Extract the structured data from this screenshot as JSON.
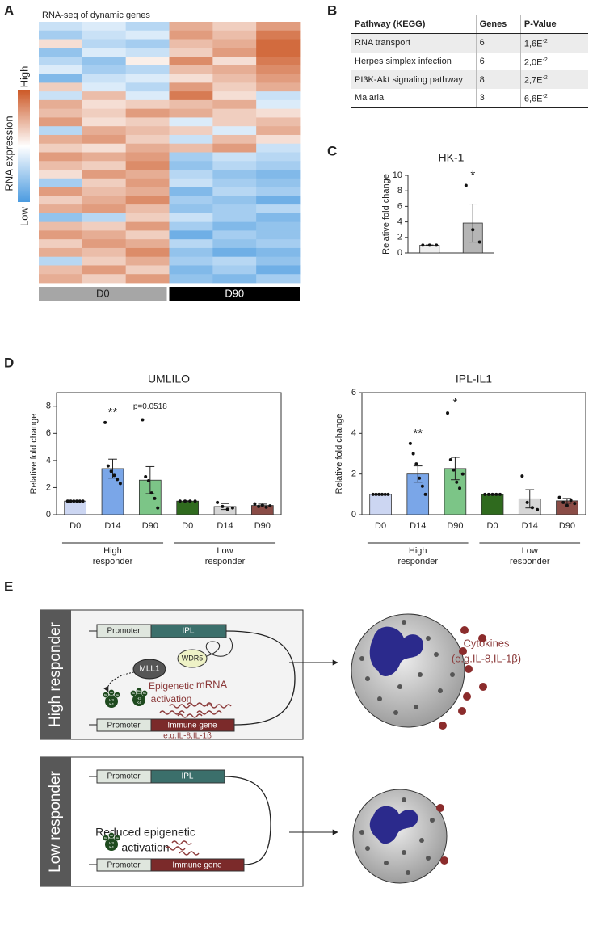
{
  "panel_labels": [
    "A",
    "B",
    "C",
    "D",
    "E"
  ],
  "chart_data": [
    {
      "type": "heatmap",
      "title": "RNA-seq of dynamic genes",
      "zlim": [
        -1,
        1
      ],
      "colorbar": {
        "label": "RNA expression",
        "high": "High",
        "low": "Low",
        "colors": [
          "#4b9be0",
          "#ffffff",
          "#cd5a28"
        ]
      },
      "groups": [
        {
          "name": "D0",
          "columns": 3,
          "color": "#a6a6a6",
          "text_color": "#222222"
        },
        {
          "name": "D90",
          "columns": 3,
          "color": "#000000",
          "text_color": "#ffffff"
        }
      ],
      "values": [
        [
          -0.3,
          -0.2,
          -0.4,
          0.5,
          0.3,
          0.6
        ],
        [
          -0.5,
          -0.3,
          -0.2,
          0.6,
          0.4,
          0.8
        ],
        [
          0.2,
          -0.4,
          -0.5,
          0.4,
          0.5,
          0.9
        ],
        [
          -0.6,
          -0.2,
          -0.3,
          0.3,
          0.6,
          0.9
        ],
        [
          -0.4,
          -0.6,
          0.1,
          0.7,
          0.2,
          0.8
        ],
        [
          -0.2,
          -0.5,
          -0.4,
          0.4,
          0.5,
          0.7
        ],
        [
          -0.7,
          -0.3,
          -0.2,
          0.2,
          0.4,
          0.6
        ],
        [
          0.3,
          -0.2,
          -0.4,
          0.6,
          0.3,
          0.5
        ],
        [
          -0.3,
          0.4,
          -0.2,
          0.8,
          0.2,
          -0.3
        ],
        [
          0.5,
          0.2,
          0.3,
          0.4,
          0.5,
          -0.2
        ],
        [
          0.4,
          0.3,
          0.6,
          0.5,
          0.3,
          0.2
        ],
        [
          0.6,
          0.2,
          0.3,
          -0.2,
          0.3,
          0.4
        ],
        [
          -0.4,
          0.5,
          0.4,
          0.3,
          -0.2,
          0.5
        ],
        [
          0.5,
          0.6,
          0.3,
          -0.3,
          0.4,
          0.2
        ],
        [
          0.3,
          0.2,
          0.5,
          0.4,
          0.6,
          -0.3
        ],
        [
          0.6,
          0.5,
          0.6,
          -0.5,
          -0.3,
          -0.4
        ],
        [
          0.4,
          0.3,
          0.7,
          -0.6,
          -0.4,
          -0.5
        ],
        [
          0.2,
          0.6,
          0.5,
          -0.4,
          -0.6,
          -0.7
        ],
        [
          -0.5,
          0.3,
          0.6,
          -0.3,
          -0.5,
          -0.6
        ],
        [
          0.6,
          0.4,
          0.5,
          -0.7,
          -0.4,
          -0.5
        ],
        [
          0.3,
          0.5,
          0.7,
          -0.5,
          -0.6,
          -0.8
        ],
        [
          0.5,
          0.6,
          0.4,
          -0.6,
          -0.5,
          -0.4
        ],
        [
          -0.6,
          -0.4,
          0.3,
          -0.3,
          -0.5,
          -0.7
        ],
        [
          0.4,
          0.3,
          0.6,
          -0.5,
          -0.7,
          -0.6
        ],
        [
          0.6,
          0.5,
          0.3,
          -0.8,
          -0.5,
          -0.6
        ],
        [
          0.3,
          0.6,
          0.5,
          -0.4,
          -0.6,
          -0.5
        ],
        [
          0.5,
          0.4,
          0.7,
          -0.6,
          -0.8,
          -0.7
        ],
        [
          -0.4,
          0.3,
          0.5,
          -0.5,
          -0.4,
          -0.6
        ],
        [
          0.4,
          0.6,
          0.3,
          -0.7,
          -0.5,
          -0.8
        ],
        [
          0.5,
          0.3,
          0.6,
          -0.6,
          -0.7,
          -0.5
        ]
      ]
    },
    {
      "type": "bar",
      "title": "HK-1",
      "ylabel": "Relative fold change",
      "categories": [
        null,
        null
      ],
      "values": [
        1,
        3.85
      ],
      "errors": [
        0.03,
        2.45
      ],
      "points": [
        [
          1,
          1,
          1
        ],
        [
          8.7,
          3.0,
          1.4
        ]
      ],
      "colors": [
        "#eeeeee",
        "#b5b5b5"
      ],
      "ylim": [
        0,
        10
      ],
      "yticks": [
        0,
        2,
        4,
        6,
        8,
        10
      ],
      "annotations": [
        null,
        "*"
      ],
      "frame": false
    },
    {
      "type": "bar",
      "title": "UMLILO",
      "ylabel": "Relative fold change",
      "categories": [
        "D0",
        "D14",
        "D90",
        "D0",
        "D14",
        "D90"
      ],
      "values": [
        1,
        3.4,
        2.55,
        1,
        0.6,
        0.68
      ],
      "errors": [
        0.02,
        0.7,
        1.0,
        0.02,
        0.22,
        0.1
      ],
      "points": [
        [
          1,
          1,
          1,
          1,
          1,
          1
        ],
        [
          6.8,
          3.6,
          3.2,
          2.9,
          2.6,
          2.3
        ],
        [
          7.0,
          2.8,
          2.5,
          1.6,
          1.2,
          0.5
        ],
        [
          1,
          1,
          1,
          1
        ],
        [
          0.9,
          0.6,
          0.4,
          0.5
        ],
        [
          0.8,
          0.6,
          0.7,
          0.55,
          0.65
        ]
      ],
      "colors": [
        "#ccd6f2",
        "#7aa6e8",
        "#7cc587",
        "#2f6a1e",
        "#d6d6d6",
        "#8a4c46"
      ],
      "ylim": [
        0,
        9
      ],
      "yticks": [
        0,
        2,
        4,
        6,
        8
      ],
      "annotations": [
        null,
        "**",
        "p=0.0518",
        null,
        null,
        null
      ],
      "groups": [
        {
          "name": "High responder",
          "size": 3
        },
        {
          "name": "Low responder",
          "size": 3
        }
      ],
      "frame": true
    },
    {
      "type": "bar",
      "title": "IPL-IL1",
      "ylabel": "Relative fold change",
      "categories": [
        "D0",
        "D14",
        "D90",
        "D0",
        "D14",
        "D90"
      ],
      "values": [
        1,
        2.0,
        2.27,
        1,
        0.78,
        0.68
      ],
      "errors": [
        0.02,
        0.4,
        0.55,
        0.02,
        0.45,
        0.12
      ],
      "points": [
        [
          1,
          1,
          1,
          1,
          1,
          1
        ],
        [
          3.5,
          3.0,
          2.5,
          1.8,
          1.4,
          1.0
        ],
        [
          5.0,
          2.7,
          2.2,
          1.6,
          1.3,
          2.0
        ],
        [
          1,
          1,
          1,
          1,
          1
        ],
        [
          1.9,
          0.6,
          0.35,
          0.25
        ],
        [
          0.85,
          0.6,
          0.45,
          0.7,
          0.55
        ]
      ],
      "colors": [
        "#ccd6f2",
        "#7aa6e8",
        "#7cc587",
        "#2f6a1e",
        "#d6d6d6",
        "#8a4c46"
      ],
      "ylim": [
        0,
        6
      ],
      "yticks": [
        0,
        2,
        4,
        6
      ],
      "annotations": [
        null,
        "**",
        "*",
        null,
        null,
        null
      ],
      "groups": [
        {
          "name": "High responder",
          "size": 3
        },
        {
          "name": "Low responder",
          "size": 3
        }
      ],
      "frame": true
    }
  ],
  "table": {
    "header": [
      "Pathway (KEGG)",
      "Genes",
      "P-Value"
    ],
    "rows": [
      [
        "RNA transport",
        6,
        {
          "base": "1,6E",
          "exp": "-2"
        }
      ],
      [
        "Herpes simplex infection",
        6,
        {
          "base": "2,0E",
          "exp": "-2"
        }
      ],
      [
        "PI3K-Akt signaling pathway",
        8,
        {
          "base": "2,7E",
          "exp": "-2"
        }
      ],
      [
        "Malaria",
        3,
        {
          "base": "6,6E",
          "exp": "-2"
        }
      ]
    ]
  },
  "diagram": {
    "high": {
      "label": "High responder",
      "promoter": "Promoter",
      "lncrna": "IPL",
      "proteins": [
        "MLL1",
        "WDR5"
      ],
      "activation": [
        "Epigenetic",
        "activation"
      ],
      "mrna": "mRNA",
      "gene": "Immune gene",
      "gene_examples": "e.g.IL-8,IL-1β",
      "output": [
        "Cytokines",
        "(e.g.IL-8,IL-1β)"
      ]
    },
    "low": {
      "label": "Low responder",
      "promoter": "Promoter",
      "lncrna": "IPL",
      "activation": [
        "Reduced epigenetic",
        "activation"
      ],
      "gene": "Immune gene"
    },
    "histone": {
      "mark": "Me",
      "histone": "H3",
      "residue": "K4"
    }
  }
}
